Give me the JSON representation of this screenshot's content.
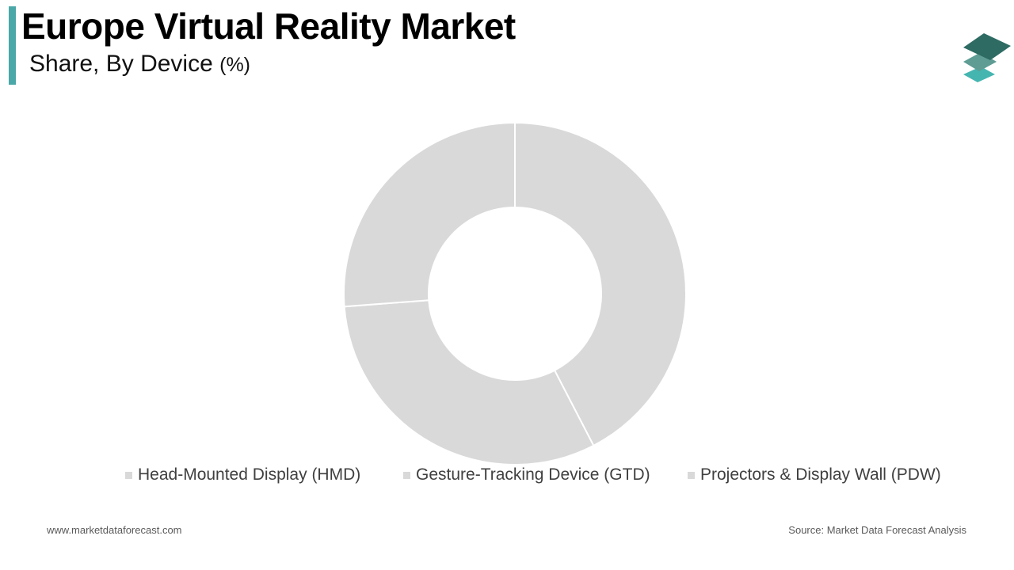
{
  "header": {
    "title": "Europe Virtual Reality Market",
    "subtitle": "Share, By Device",
    "subtitle_unit": "(%)"
  },
  "colors": {
    "accent": "#4aa8a8",
    "slice": "#d9d9d9",
    "slice_border": "#ffffff",
    "logo_top": "#2e6b63",
    "logo_mid": "#5e9c94",
    "logo_bottom": "#45b5b0"
  },
  "chart_data": {
    "type": "pie",
    "subtype": "donut",
    "title": "Europe Virtual Reality Market",
    "subtitle": "Share, By Device (%)",
    "categories": [
      "Head-Mounted Display (HMD)",
      "Gesture-Tracking Device (GTD)",
      "Projectors & Display Wall (PDW)"
    ],
    "values": [
      42.4,
      31.4,
      26.2
    ],
    "colors": [
      "#d9d9d9",
      "#d9d9d9",
      "#d9d9d9"
    ],
    "legend_position": "bottom",
    "data_labels": false
  },
  "legend": {
    "items": [
      {
        "label": "Head-Mounted Display (HMD)"
      },
      {
        "label": "Gesture-Tracking Device (GTD)"
      },
      {
        "label": "Projectors & Display Wall (PDW)"
      }
    ]
  },
  "footer": {
    "website": "www.marketdataforecast.com",
    "source": "Source: Market Data Forecast Analysis"
  }
}
